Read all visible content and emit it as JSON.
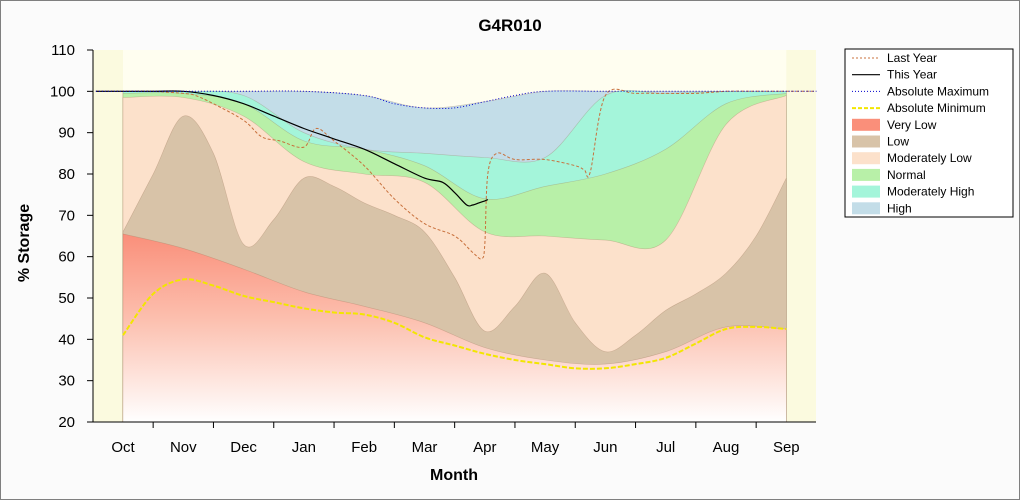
{
  "chart_data": {
    "type": "area",
    "title": "G4R010",
    "xlabel": "Month",
    "ylabel": "% Storage",
    "categories": [
      "Oct",
      "Nov",
      "Dec",
      "Jan",
      "Feb",
      "Mar",
      "Apr",
      "May",
      "Jun",
      "Jul",
      "Aug",
      "Sep"
    ],
    "ylim": [
      20,
      110
    ],
    "yticks": [
      20,
      30,
      40,
      50,
      60,
      70,
      80,
      90,
      100,
      110
    ],
    "grid": false,
    "legend_position": "right",
    "bands": [
      {
        "name": "Very Low",
        "color": "#fa8f7a",
        "x": [
          0,
          1,
          2,
          3,
          4,
          5,
          6,
          7,
          8,
          9,
          10,
          11
        ],
        "upper": [
          65.5,
          62,
          57,
          51.5,
          48,
          44,
          38,
          35,
          34,
          37,
          43,
          42.5
        ]
      },
      {
        "name": "Low",
        "color": "#d8c3a8",
        "x": [
          0,
          0.5,
          1,
          1.5,
          2,
          2.5,
          3,
          3.5,
          4,
          4.5,
          5,
          5.5,
          6,
          6.5,
          7,
          7.5,
          8,
          8.5,
          9,
          9.5,
          10,
          10.5,
          11
        ],
        "upper": [
          66,
          80,
          94,
          85,
          63,
          69,
          79,
          77,
          73,
          70,
          66,
          55,
          42,
          48,
          56,
          44,
          37,
          41,
          47,
          51,
          56,
          65,
          79
        ]
      },
      {
        "name": "Moderately Low",
        "color": "#fce1cb",
        "x": [
          0,
          1,
          2,
          3,
          4,
          5,
          6,
          7,
          8,
          9,
          10,
          11
        ],
        "upper": [
          98.5,
          98.5,
          94,
          83,
          80,
          78,
          66,
          65,
          64,
          64,
          92,
          99
        ]
      },
      {
        "name": "Normal",
        "color": "#b8f0a8",
        "x": [
          0,
          1,
          2,
          3,
          4,
          5,
          6,
          7,
          8,
          9,
          10,
          11
        ],
        "upper": [
          99.5,
          99.5,
          97,
          88,
          86,
          82,
          74,
          77,
          80,
          86,
          97,
          99.5
        ]
      },
      {
        "name": "Moderately High",
        "color": "#a4f5da",
        "x": [
          0,
          1,
          2,
          3,
          4,
          5,
          6,
          7,
          8,
          9,
          10,
          11
        ],
        "upper": [
          100,
          100,
          99,
          90,
          86,
          85,
          84,
          84,
          99,
          99.5,
          100,
          100
        ]
      },
      {
        "name": "High",
        "color": "#c3dde8",
        "x": [
          0,
          1,
          2,
          3,
          4,
          5,
          6,
          7,
          8,
          9,
          10,
          11
        ],
        "upper": [
          100,
          100,
          100,
          100,
          99,
          96,
          97.5,
          100,
          100,
          100,
          100,
          100
        ]
      }
    ],
    "series": [
      {
        "name": "Last Year",
        "color": "#c8703c",
        "style": "dashed",
        "x": [
          -0.45,
          0,
          0.5,
          1,
          1.2,
          1.5,
          2,
          2.3,
          2.6,
          3,
          3.2,
          3.5,
          4,
          4.5,
          5,
          5.5,
          5.8,
          5.95,
          6,
          6.05,
          6.2,
          6.5,
          7,
          7.5,
          7.65,
          7.75,
          8,
          8.5,
          9,
          9.5,
          10,
          10.5,
          11,
          11.5
        ],
        "values": [
          100,
          100,
          100,
          99.5,
          99,
          97,
          93,
          89,
          88,
          86.5,
          91,
          88,
          82,
          74,
          68,
          65,
          61,
          59.5,
          63,
          80,
          85,
          83.5,
          83.5,
          82,
          81,
          80.5,
          99,
          99.5,
          99.5,
          99.5,
          100,
          100,
          100,
          100
        ]
      },
      {
        "name": "This Year",
        "color": "#000000",
        "style": "solid",
        "x": [
          -0.45,
          0,
          0.5,
          1,
          1.5,
          2,
          2.5,
          3,
          3.5,
          4,
          4.5,
          5,
          5.3,
          5.5,
          5.7,
          5.8,
          5.9,
          6,
          6.05
        ],
        "values": [
          100,
          100,
          100,
          100,
          99,
          97,
          94,
          91,
          88.5,
          86,
          82.5,
          79,
          78,
          75.5,
          72.5,
          72.5,
          73,
          73.5,
          73.8
        ]
      },
      {
        "name": "Absolute Maximum",
        "color": "#0000cc",
        "style": "dotted",
        "x": [
          -0.45,
          0,
          1,
          2,
          3,
          4,
          4.5,
          5,
          5.5,
          6,
          6.5,
          7,
          8,
          9,
          10,
          11,
          11.5
        ],
        "values": [
          100,
          100,
          100,
          100,
          100,
          99,
          97,
          96,
          96,
          97.5,
          99,
          100,
          100,
          100,
          100,
          100,
          100
        ]
      },
      {
        "name": "Absolute Minimum",
        "color": "#f2e600",
        "style": "dashed",
        "x": [
          0,
          0.5,
          1,
          1.5,
          2,
          2.5,
          3,
          3.5,
          4,
          4.5,
          5,
          5.5,
          6,
          6.5,
          7,
          7.5,
          8,
          8.5,
          9,
          9.5,
          10,
          10.5,
          11
        ],
        "values": [
          41,
          51,
          54.5,
          53,
          50.5,
          49,
          47.5,
          46.5,
          46,
          44,
          40.5,
          38.5,
          36.5,
          35,
          34,
          33,
          33,
          34,
          35.5,
          39,
          42.5,
          43,
          42.5
        ]
      }
    ]
  },
  "legend": {
    "items": [
      {
        "label": "Last Year",
        "kind": "line",
        "color": "#c8703c",
        "dash": "2,2",
        "width": 1
      },
      {
        "label": "This Year",
        "kind": "line",
        "color": "#000000",
        "dash": "",
        "width": 1.2
      },
      {
        "label": "Absolute Maximum",
        "kind": "line",
        "color": "#0000cc",
        "dash": "1,2",
        "width": 1
      },
      {
        "label": "Absolute Minimum",
        "kind": "line",
        "color": "#f2e600",
        "dash": "4,2",
        "width": 2
      },
      {
        "label": "Very Low",
        "kind": "swatch",
        "color": "#fa8f7a"
      },
      {
        "label": "Low",
        "kind": "swatch",
        "color": "#d8c3a8"
      },
      {
        "label": "Moderately Low",
        "kind": "swatch",
        "color": "#fce1cb"
      },
      {
        "label": "Normal",
        "kind": "swatch",
        "color": "#b8f0a8"
      },
      {
        "label": "Moderately High",
        "kind": "swatch",
        "color": "#a4f5da"
      },
      {
        "label": "High",
        "kind": "swatch",
        "color": "#c3dde8"
      }
    ]
  },
  "colors": {
    "plot_background": "#fffef0",
    "plot_shade": "#fbfadf",
    "axis": "#000000"
  }
}
